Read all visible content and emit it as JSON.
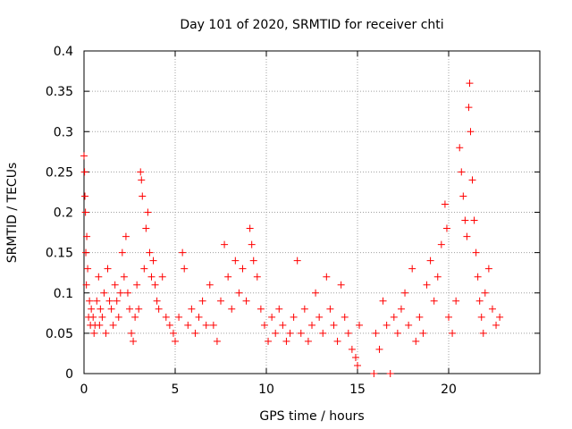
{
  "chart_data": {
    "type": "scatter",
    "title": "Day 101 of 2020, SRMTID for receiver chti",
    "xlabel": "GPS time / hours",
    "ylabel": "SRMTID / TECUs",
    "xlim": [
      0,
      25
    ],
    "ylim": [
      0,
      0.4
    ],
    "x_ticks": [
      0,
      5,
      10,
      15,
      20
    ],
    "x_tick_labels": [
      "0",
      "5",
      "10",
      "15",
      "20"
    ],
    "y_ticks": [
      0,
      0.05,
      0.1,
      0.15,
      0.2,
      0.25,
      0.3,
      0.35,
      0.4
    ],
    "y_tick_labels": [
      "0",
      "0.05",
      "0.1",
      "0.15",
      "0.2",
      "0.25",
      "0.3",
      "0.35",
      "0.4"
    ],
    "grid": true,
    "marker": "+",
    "colors": {
      "series": "#ff0000",
      "grid": "#a0a0a0",
      "axis": "#000000"
    },
    "series": [
      {
        "name": "SRMTID",
        "points": [
          [
            0.0,
            0.27
          ],
          [
            0.03,
            0.25
          ],
          [
            0.05,
            0.22
          ],
          [
            0.08,
            0.2
          ],
          [
            0.1,
            0.15
          ],
          [
            0.13,
            0.11
          ],
          [
            0.15,
            0.17
          ],
          [
            0.2,
            0.13
          ],
          [
            0.25,
            0.07
          ],
          [
            0.3,
            0.09
          ],
          [
            0.35,
            0.06
          ],
          [
            0.4,
            0.08
          ],
          [
            0.5,
            0.07
          ],
          [
            0.55,
            0.05
          ],
          [
            0.6,
            0.06
          ],
          [
            0.7,
            0.09
          ],
          [
            0.8,
            0.12
          ],
          [
            0.85,
            0.06
          ],
          [
            0.9,
            0.08
          ],
          [
            1.0,
            0.07
          ],
          [
            1.1,
            0.1
          ],
          [
            1.2,
            0.05
          ],
          [
            1.3,
            0.13
          ],
          [
            1.4,
            0.09
          ],
          [
            1.5,
            0.08
          ],
          [
            1.6,
            0.06
          ],
          [
            1.7,
            0.11
          ],
          [
            1.8,
            0.09
          ],
          [
            1.9,
            0.07
          ],
          [
            2.0,
            0.1
          ],
          [
            2.1,
            0.15
          ],
          [
            2.2,
            0.12
          ],
          [
            2.3,
            0.17
          ],
          [
            2.4,
            0.1
          ],
          [
            2.5,
            0.08
          ],
          [
            2.6,
            0.05
          ],
          [
            2.7,
            0.04
          ],
          [
            2.8,
            0.07
          ],
          [
            2.9,
            0.11
          ],
          [
            3.0,
            0.08
          ],
          [
            3.1,
            0.25
          ],
          [
            3.15,
            0.24
          ],
          [
            3.2,
            0.22
          ],
          [
            3.3,
            0.13
          ],
          [
            3.4,
            0.18
          ],
          [
            3.5,
            0.2
          ],
          [
            3.6,
            0.15
          ],
          [
            3.7,
            0.12
          ],
          [
            3.8,
            0.14
          ],
          [
            3.9,
            0.11
          ],
          [
            4.0,
            0.09
          ],
          [
            4.1,
            0.08
          ],
          [
            4.3,
            0.12
          ],
          [
            4.5,
            0.07
          ],
          [
            4.7,
            0.06
          ],
          [
            4.9,
            0.05
          ],
          [
            5.0,
            0.04
          ],
          [
            5.2,
            0.07
          ],
          [
            5.4,
            0.15
          ],
          [
            5.5,
            0.13
          ],
          [
            5.7,
            0.06
          ],
          [
            5.9,
            0.08
          ],
          [
            6.1,
            0.05
          ],
          [
            6.3,
            0.07
          ],
          [
            6.5,
            0.09
          ],
          [
            6.7,
            0.06
          ],
          [
            6.9,
            0.11
          ],
          [
            7.1,
            0.06
          ],
          [
            7.3,
            0.04
          ],
          [
            7.5,
            0.09
          ],
          [
            7.7,
            0.16
          ],
          [
            7.9,
            0.12
          ],
          [
            8.1,
            0.08
          ],
          [
            8.3,
            0.14
          ],
          [
            8.5,
            0.1
          ],
          [
            8.7,
            0.13
          ],
          [
            8.9,
            0.09
          ],
          [
            9.1,
            0.18
          ],
          [
            9.2,
            0.16
          ],
          [
            9.3,
            0.14
          ],
          [
            9.5,
            0.12
          ],
          [
            9.7,
            0.08
          ],
          [
            9.9,
            0.06
          ],
          [
            10.1,
            0.04
          ],
          [
            10.3,
            0.07
          ],
          [
            10.5,
            0.05
          ],
          [
            10.7,
            0.08
          ],
          [
            10.9,
            0.06
          ],
          [
            11.1,
            0.04
          ],
          [
            11.3,
            0.05
          ],
          [
            11.5,
            0.07
          ],
          [
            11.7,
            0.14
          ],
          [
            11.9,
            0.05
          ],
          [
            12.1,
            0.08
          ],
          [
            12.3,
            0.04
          ],
          [
            12.5,
            0.06
          ],
          [
            12.7,
            0.1
          ],
          [
            12.9,
            0.07
          ],
          [
            13.1,
            0.05
          ],
          [
            13.3,
            0.12
          ],
          [
            13.5,
            0.08
          ],
          [
            13.7,
            0.06
          ],
          [
            13.9,
            0.04
          ],
          [
            14.1,
            0.11
          ],
          [
            14.3,
            0.07
          ],
          [
            14.5,
            0.05
          ],
          [
            14.7,
            0.03
          ],
          [
            14.9,
            0.02
          ],
          [
            15.0,
            0.01
          ],
          [
            15.1,
            0.06
          ],
          [
            15.9,
            0.0
          ],
          [
            16.0,
            0.05
          ],
          [
            16.2,
            0.03
          ],
          [
            16.4,
            0.09
          ],
          [
            16.6,
            0.06
          ],
          [
            16.8,
            0.0
          ],
          [
            17.0,
            0.07
          ],
          [
            17.2,
            0.05
          ],
          [
            17.4,
            0.08
          ],
          [
            17.6,
            0.1
          ],
          [
            17.8,
            0.06
          ],
          [
            18.0,
            0.13
          ],
          [
            18.2,
            0.04
          ],
          [
            18.4,
            0.07
          ],
          [
            18.6,
            0.05
          ],
          [
            18.8,
            0.11
          ],
          [
            19.0,
            0.14
          ],
          [
            19.2,
            0.09
          ],
          [
            19.4,
            0.12
          ],
          [
            19.6,
            0.16
          ],
          [
            19.8,
            0.21
          ],
          [
            19.9,
            0.18
          ],
          [
            20.0,
            0.07
          ],
          [
            20.2,
            0.05
          ],
          [
            20.4,
            0.09
          ],
          [
            20.6,
            0.28
          ],
          [
            20.7,
            0.25
          ],
          [
            20.8,
            0.22
          ],
          [
            20.9,
            0.19
          ],
          [
            21.0,
            0.17
          ],
          [
            21.1,
            0.33
          ],
          [
            21.15,
            0.36
          ],
          [
            21.2,
            0.3
          ],
          [
            21.3,
            0.24
          ],
          [
            21.4,
            0.19
          ],
          [
            21.5,
            0.15
          ],
          [
            21.6,
            0.12
          ],
          [
            21.7,
            0.09
          ],
          [
            21.8,
            0.07
          ],
          [
            21.9,
            0.05
          ],
          [
            22.0,
            0.1
          ],
          [
            22.2,
            0.13
          ],
          [
            22.4,
            0.08
          ],
          [
            22.6,
            0.06
          ],
          [
            22.8,
            0.07
          ]
        ]
      }
    ]
  }
}
